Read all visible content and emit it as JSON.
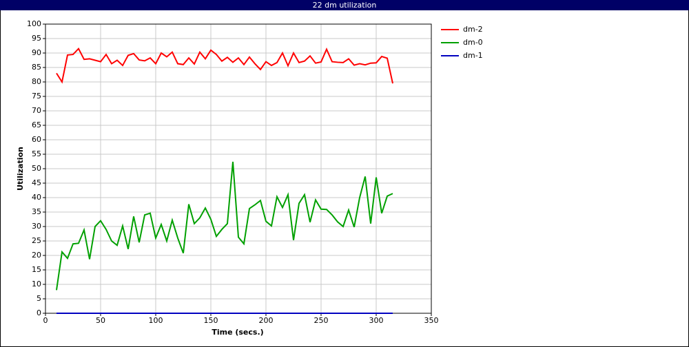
{
  "chart_data": {
    "type": "line",
    "title": "22 dm utilization",
    "x_label": "Time (secs.)",
    "y_label": "Utilization",
    "x": [
      10,
      15,
      20,
      25,
      30,
      35,
      40,
      45,
      50,
      55,
      60,
      65,
      70,
      75,
      80,
      85,
      90,
      95,
      100,
      105,
      110,
      115,
      120,
      125,
      130,
      135,
      140,
      145,
      150,
      155,
      160,
      165,
      170,
      175,
      180,
      185,
      190,
      195,
      200,
      205,
      210,
      215,
      220,
      225,
      230,
      235,
      240,
      245,
      250,
      255,
      260,
      265,
      270,
      275,
      280,
      285,
      290,
      295,
      300,
      305,
      310,
      315
    ],
    "series": [
      {
        "name": "dm-2",
        "color": "#ff0000",
        "values": [
          83,
          80,
          89.3,
          89.5,
          91.5,
          87.8,
          88,
          87.5,
          87,
          89.5,
          86.3,
          87.5,
          85.7,
          89.2,
          89.8,
          87.6,
          87.3,
          88.3,
          86.3,
          90,
          88.7,
          90.3,
          86.3,
          86,
          88.3,
          86.2,
          90.3,
          88,
          91,
          89.5,
          87.2,
          88.5,
          86.8,
          88.3,
          86,
          88.6,
          86.3,
          84.3,
          87,
          85.7,
          86.7,
          90,
          85.6,
          90,
          86.7,
          87.2,
          89,
          86.5,
          86.9,
          91.3,
          87,
          86.8,
          86.7,
          88,
          85.8,
          86.3,
          85.9,
          86.5,
          86.6,
          88.8,
          88.2,
          79.5
        ]
      },
      {
        "name": "dm-0",
        "color": "#00a000",
        "values": [
          8,
          21.2,
          19,
          24,
          24.2,
          28.8,
          18.7,
          30,
          32,
          29,
          25,
          23.5,
          30.2,
          22.2,
          33.5,
          24.5,
          34,
          34.6,
          26,
          30.7,
          25,
          32.2,
          26,
          20.8,
          37.7,
          31,
          33,
          36.4,
          32.5,
          26.6,
          29,
          31,
          52.4,
          26.3,
          24,
          36.2,
          37.5,
          39,
          31.8,
          30.2,
          40.3,
          36.6,
          41,
          25.3,
          38,
          41,
          31.5,
          39.2,
          36,
          35.9,
          34,
          31.6,
          30,
          35.7,
          29.8,
          40,
          47.3,
          31,
          47,
          34.6,
          40.5,
          41.4
        ]
      },
      {
        "name": "dm-1",
        "color": "#0000c0",
        "values": [
          0,
          0,
          0,
          0,
          0,
          0,
          0,
          0,
          0,
          0,
          0,
          0,
          0,
          0,
          0,
          0,
          0,
          0,
          0,
          0,
          0,
          0,
          0,
          0,
          0,
          0,
          0,
          0,
          0,
          0,
          0,
          0,
          0,
          0,
          0,
          0,
          0,
          0,
          0,
          0,
          0,
          0,
          0,
          0,
          0,
          0,
          0,
          0,
          0,
          0,
          0,
          0,
          0,
          0,
          0,
          0,
          0,
          0,
          0,
          0,
          0,
          0
        ]
      }
    ],
    "xlim": [
      0,
      350
    ],
    "xticks": [
      0,
      50,
      100,
      150,
      200,
      250,
      300,
      350
    ],
    "ylim": [
      0,
      100
    ],
    "yticks": [
      0,
      5,
      10,
      15,
      20,
      25,
      30,
      35,
      40,
      45,
      50,
      55,
      60,
      65,
      70,
      75,
      80,
      85,
      90,
      95,
      100
    ],
    "grid": true,
    "legend": "right"
  }
}
